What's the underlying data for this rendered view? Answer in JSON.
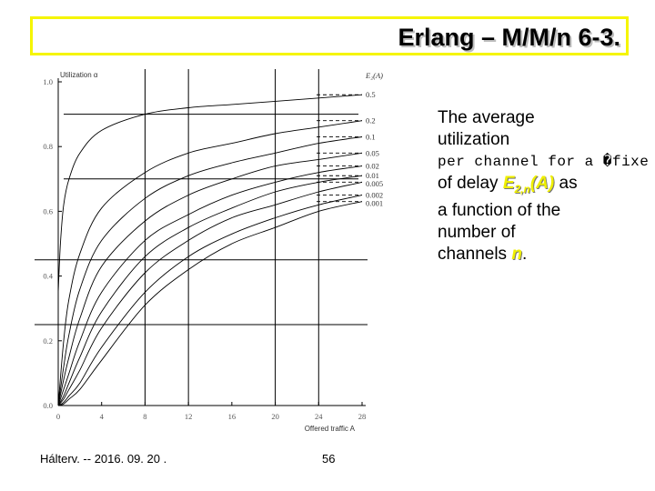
{
  "slide": {
    "title": "Erlang – M/M/n  6-3.",
    "caption": {
      "line1": "The average",
      "line2": "utilization",
      "line3": "per channel for a �fixe",
      "line4_prefix": "of delay ",
      "line4_var": "E",
      "line4_sub": "2,n",
      "line4_arg": "(A)",
      "line4_suffix": " as",
      "line5": "a function of the",
      "line6": "number of",
      "line7_prefix": "channels ",
      "line7_var": "n",
      "line7_suffix": "."
    },
    "footer_left": "Hálterv. -- 2016. 09. 20 .",
    "footer_page": "56",
    "accent_color": "#f5f500"
  },
  "chart_data": {
    "type": "line",
    "ylabel": "Utilization α",
    "xlabel": "Offered traffic A",
    "legend_title": "E₂(A)",
    "xlim": [
      0,
      28
    ],
    "ylim": [
      0,
      1.0
    ],
    "x_ticks": [
      0,
      4,
      8,
      12,
      16,
      20,
      24,
      28
    ],
    "y_ticks": [
      "0.0",
      "0.2",
      "0.4",
      "0.6",
      "0.8",
      "1.0"
    ],
    "grid": "partial",
    "series": [
      {
        "name": "0.5",
        "x": [
          0,
          0.2,
          0.5,
          1,
          2,
          4,
          8,
          12,
          16,
          20,
          24,
          28
        ],
        "values": [
          0.35,
          0.5,
          0.62,
          0.7,
          0.78,
          0.85,
          0.9,
          0.92,
          0.93,
          0.94,
          0.95,
          0.96
        ]
      },
      {
        "name": "0.2",
        "x": [
          0,
          0.5,
          1,
          2,
          4,
          8,
          12,
          16,
          20,
          24,
          28
        ],
        "values": [
          0,
          0.2,
          0.33,
          0.47,
          0.61,
          0.72,
          0.78,
          0.81,
          0.84,
          0.86,
          0.88
        ]
      },
      {
        "name": "0.1",
        "x": [
          0,
          0.5,
          1,
          2,
          4,
          8,
          12,
          16,
          20,
          24,
          28
        ],
        "values": [
          0,
          0.12,
          0.22,
          0.36,
          0.51,
          0.64,
          0.71,
          0.75,
          0.78,
          0.81,
          0.83
        ]
      },
      {
        "name": "0.05",
        "x": [
          0,
          0.5,
          1,
          2,
          4,
          8,
          12,
          16,
          20,
          24,
          28
        ],
        "values": [
          0,
          0.08,
          0.15,
          0.27,
          0.43,
          0.57,
          0.65,
          0.7,
          0.74,
          0.76,
          0.78
        ]
      },
      {
        "name": "0.02",
        "x": [
          0,
          0.5,
          1,
          2,
          4,
          8,
          12,
          16,
          20,
          24,
          28
        ],
        "values": [
          0,
          0.05,
          0.1,
          0.2,
          0.35,
          0.51,
          0.59,
          0.65,
          0.69,
          0.72,
          0.74
        ]
      },
      {
        "name": "0.01",
        "x": [
          0,
          0.5,
          1,
          2,
          4,
          8,
          12,
          16,
          20,
          24,
          28
        ],
        "values": [
          0,
          0.03,
          0.07,
          0.15,
          0.29,
          0.46,
          0.55,
          0.61,
          0.66,
          0.69,
          0.71
        ]
      },
      {
        "name": "0.005",
        "x": [
          0,
          0.5,
          1,
          2,
          4,
          8,
          12,
          16,
          20,
          24,
          28
        ],
        "values": [
          0,
          0.02,
          0.05,
          0.11,
          0.24,
          0.41,
          0.51,
          0.58,
          0.62,
          0.66,
          0.69
        ]
      },
      {
        "name": "0.002",
        "x": [
          0,
          0.5,
          1,
          2,
          4,
          8,
          12,
          16,
          20,
          24,
          28
        ],
        "values": [
          0,
          0.01,
          0.03,
          0.07,
          0.18,
          0.35,
          0.46,
          0.53,
          0.58,
          0.62,
          0.65
        ]
      },
      {
        "name": "0.001",
        "x": [
          0,
          0.5,
          1,
          2,
          4,
          8,
          12,
          16,
          20,
          24,
          28
        ],
        "values": [
          0,
          0.005,
          0.02,
          0.05,
          0.14,
          0.31,
          0.42,
          0.5,
          0.55,
          0.6,
          0.63
        ]
      }
    ]
  }
}
